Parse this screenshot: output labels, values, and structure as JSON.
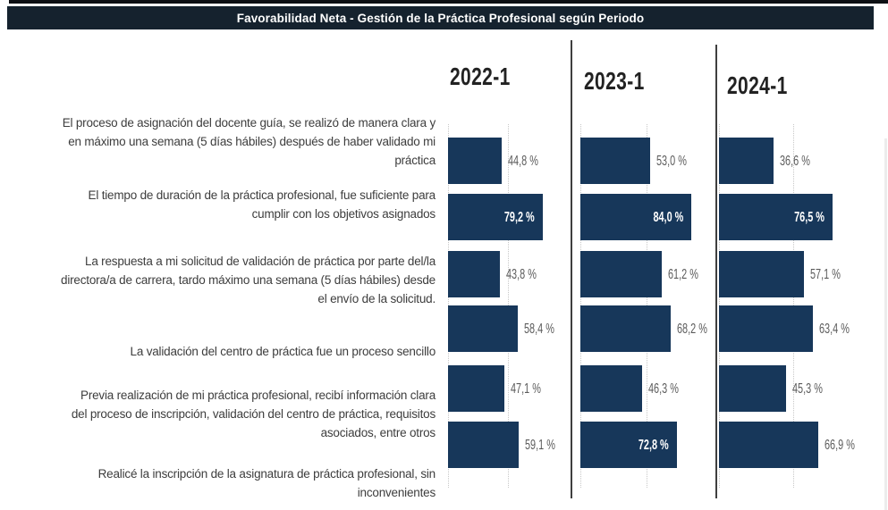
{
  "title": "Favorabilidad Neta - Gestión de la Práctica Profesional según Periodo",
  "chart_data": {
    "type": "bar",
    "orientation": "horizontal",
    "title": "Favorabilidad Neta - Gestión de la Práctica Profesional según Periodo",
    "categories": [
      "El proceso de asignación del docente guía, se realizó de manera clara y\nen máximo una semana (5 días hábiles) después de haber validado mi\npráctica",
      "El tiempo de duración de la práctica profesional, fue suficiente para\ncumplir con los objetivos asignados",
      "La respuesta a mi solicitud de validación de práctica por parte del/la\ndirectora/a de carrera, tardo máximo una semana (5 días hábiles) desde\nel envío de la solicitud.",
      "La validación del centro de práctica fue un proceso sencillo",
      "Previa realización de mi práctica profesional, recibí información clara\ndel proceso de inscripción, validación del centro de práctica, requisitos\nasociados, entre otros",
      "Realicé la inscripción de la asignatura de práctica profesional, sin\ninconvenientes"
    ],
    "series": [
      {
        "name": "2022-1",
        "values": [
          44.8,
          79.2,
          43.8,
          58.4,
          47.1,
          59.1
        ],
        "labels": [
          "44,8 %",
          "79,2 %",
          "43,8 %",
          "58,4 %",
          "47,1 %",
          "59,1 %"
        ],
        "label_inside": [
          false,
          true,
          false,
          false,
          false,
          false
        ]
      },
      {
        "name": "2023-1",
        "values": [
          53.0,
          84.0,
          61.2,
          68.2,
          46.3,
          72.8
        ],
        "labels": [
          "53,0 %",
          "84,0 %",
          "61,2 %",
          "68,2 %",
          "46,3 %",
          "72,8 %"
        ],
        "label_inside": [
          false,
          true,
          false,
          false,
          false,
          true
        ]
      },
      {
        "name": "2024-1",
        "values": [
          36.6,
          76.5,
          57.1,
          63.4,
          45.3,
          66.9
        ],
        "labels": [
          "36,6 %",
          "76,5 %",
          "57,1 %",
          "63,4 %",
          "45,3 %",
          "66,9 %"
        ],
        "label_inside": [
          false,
          true,
          false,
          false,
          false,
          false
        ]
      }
    ],
    "xlim": [
      0,
      100
    ],
    "gridlines_pct": [
      0,
      50
    ],
    "grid_style": "dotted",
    "legend": "column-headers-top",
    "bar_color": "#17375a",
    "title_bar_color": "#15222e",
    "value_label_outside_color": "#5a5a5a",
    "value_label_inside_color": "#ffffff"
  }
}
